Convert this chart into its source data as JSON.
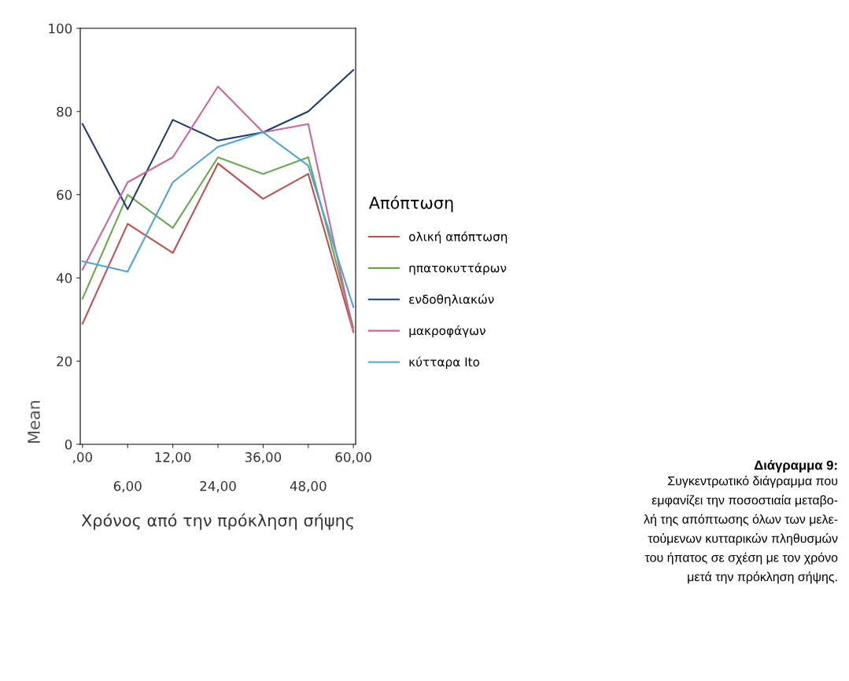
{
  "chart_data": {
    "type": "line",
    "categories": [
      ",00",
      "6,00",
      "12,00",
      "24,00",
      "36,00",
      "48,00",
      "60,00"
    ],
    "xlabel": "Χρόνος από την πρόκληση σήψης",
    "ylabel": "Mean",
    "legend_title": "Απόπτωση",
    "ylim": [
      0,
      100
    ],
    "yticks": [
      0,
      20,
      40,
      60,
      80,
      100
    ],
    "grid": false,
    "legend": "right",
    "marker": "none",
    "line_style": "solid",
    "series": [
      {
        "name": "ολική απόπτωση",
        "color": "#c0504d",
        "values": [
          29,
          53,
          46,
          67.5,
          59,
          65,
          27
        ]
      },
      {
        "name": "ηπατοκυττάρων",
        "color": "#6aa84f",
        "values": [
          35,
          60,
          52,
          69,
          65,
          69,
          28
        ]
      },
      {
        "name": "ενδοθηλιακών",
        "color": "#1f3a73",
        "values": [
          77,
          56.5,
          78,
          73,
          75,
          80,
          90
        ]
      },
      {
        "name": "μακροφάγων",
        "color": "#cc6699",
        "values": [
          42,
          63,
          69,
          86,
          75,
          77,
          27
        ]
      },
      {
        "name": "κύτταρα Ito",
        "color": "#4ea3d9",
        "values": [
          44,
          41.5,
          63,
          71.5,
          75,
          67,
          33
        ]
      }
    ],
    "annotations": [
      "Διάγραμμα 9:",
      "Συγκεντρωτικό διάγραμμα που\nεμφανίζει την ποσοστιαία μεταβο-\nλή της απόπτωσης όλων των μελε-\nτούμενων κυτταρικών πληθυσμών\nτου ήπατος σε σχέση με τον χρόνο\nμετά την πρόκληση σήψης."
    ]
  }
}
